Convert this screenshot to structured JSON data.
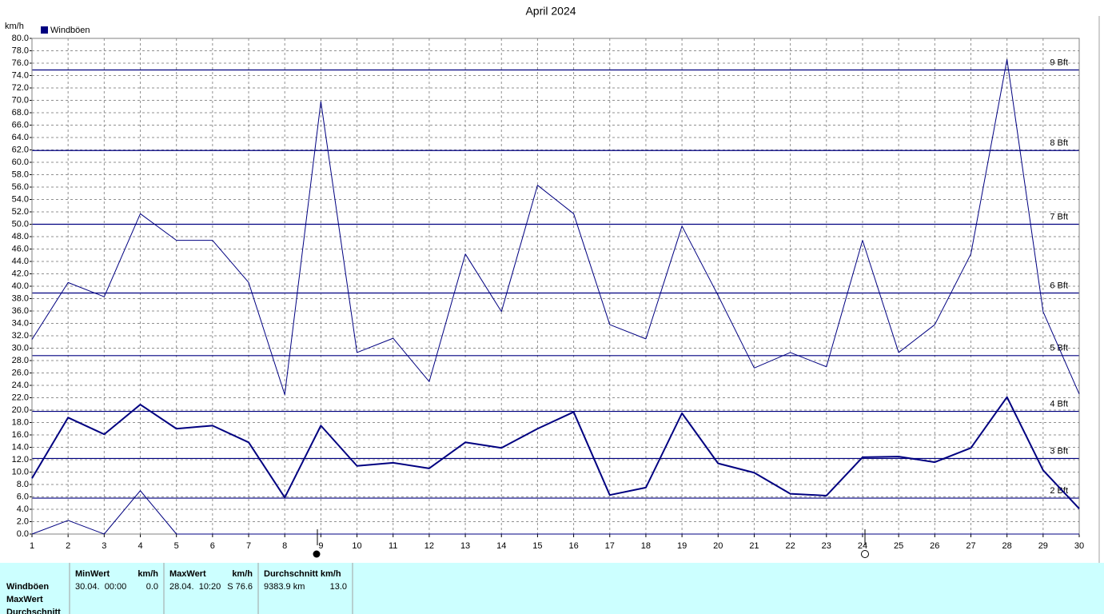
{
  "chart_data": {
    "type": "line",
    "title": "April 2024",
    "y_label": "km/h",
    "legend": "Windböen",
    "legend_color": "#000080",
    "legend_position": "top-left",
    "grid": true,
    "x": [
      1,
      2,
      3,
      4,
      5,
      6,
      7,
      8,
      9,
      10,
      11,
      12,
      13,
      14,
      15,
      16,
      17,
      18,
      19,
      20,
      21,
      22,
      23,
      24,
      25,
      26,
      27,
      28,
      29,
      30
    ],
    "xlim": [
      1,
      30
    ],
    "xticks": [
      1,
      2,
      3,
      4,
      5,
      6,
      7,
      8,
      9,
      10,
      11,
      12,
      13,
      14,
      15,
      16,
      17,
      18,
      19,
      20,
      21,
      22,
      23,
      24,
      25,
      26,
      27,
      28,
      29,
      30
    ],
    "ylim": [
      0,
      80
    ],
    "yticks": [
      {
        "value": 0,
        "label": "0.0"
      },
      {
        "value": 2,
        "label": "2.0"
      },
      {
        "value": 4,
        "label": "4.0"
      },
      {
        "value": 6,
        "label": "6.0"
      },
      {
        "value": 8,
        "label": "8.0"
      },
      {
        "value": 10,
        "label": "10.0"
      },
      {
        "value": 12,
        "label": "12.0"
      },
      {
        "value": 14,
        "label": "14.0"
      },
      {
        "value": 16,
        "label": "16.0"
      },
      {
        "value": 18,
        "label": "18.0"
      },
      {
        "value": 20,
        "label": "20.0"
      },
      {
        "value": 22,
        "label": "22.0"
      },
      {
        "value": 24,
        "label": "24.0"
      },
      {
        "value": 26,
        "label": "26.0"
      },
      {
        "value": 28,
        "label": "28.0"
      },
      {
        "value": 30,
        "label": "30.0"
      },
      {
        "value": 32,
        "label": "32.0"
      },
      {
        "value": 34,
        "label": "34.0"
      },
      {
        "value": 36,
        "label": "36.0"
      },
      {
        "value": 38,
        "label": "38.0"
      },
      {
        "value": 40,
        "label": "40.0"
      },
      {
        "value": 42,
        "label": "42.0"
      },
      {
        "value": 44,
        "label": "44.0"
      },
      {
        "value": 46,
        "label": "46.0"
      },
      {
        "value": 48,
        "label": "48.0"
      },
      {
        "value": 50,
        "label": "50.0"
      },
      {
        "value": 52,
        "label": "52.0"
      },
      {
        "value": 54,
        "label": "54.0"
      },
      {
        "value": 56,
        "label": "56.0"
      },
      {
        "value": 58,
        "label": "58.0"
      },
      {
        "value": 60,
        "label": "60.0"
      },
      {
        "value": 62,
        "label": "62.0"
      },
      {
        "value": 64,
        "label": "64.0"
      },
      {
        "value": 66,
        "label": "66.0"
      },
      {
        "value": 68,
        "label": "68.0"
      },
      {
        "value": 70,
        "label": "70.0"
      },
      {
        "value": 72,
        "label": "72.0"
      },
      {
        "value": 74,
        "label": "74.0"
      },
      {
        "value": 76,
        "label": "76.0"
      },
      {
        "value": 78,
        "label": "78.0"
      },
      {
        "value": 80,
        "label": "80.0"
      }
    ],
    "series": [
      {
        "color": "#000080",
        "width": 1,
        "values": [
          31.4,
          40.6,
          38.3,
          51.7,
          47.4,
          47.4,
          40.6,
          22.5,
          69.8,
          29.3,
          31.6,
          24.6,
          45.2,
          35.9,
          56.3,
          51.7,
          33.8,
          31.5,
          49.7,
          38.5,
          26.8,
          29.3,
          27.0,
          47.4,
          29.3,
          33.8,
          45.2,
          76.6,
          35.9,
          22.6
        ]
      },
      {
        "color": "#000080",
        "width": 2,
        "values": [
          9.0,
          18.8,
          16.1,
          20.9,
          17.0,
          17.5,
          14.8,
          5.9,
          17.5,
          11.0,
          11.5,
          10.6,
          14.8,
          13.9,
          17.0,
          19.7,
          6.3,
          7.5,
          19.5,
          11.4,
          9.9,
          6.5,
          6.2,
          12.4,
          12.5,
          11.6,
          13.9,
          22.1,
          10.3,
          4.1
        ]
      },
      {
        "color": "#000080",
        "width": 1,
        "values": [
          0,
          2.2,
          0,
          7.0,
          0,
          0,
          0,
          0,
          0,
          0,
          0,
          0,
          0,
          0,
          0,
          0,
          0,
          0,
          0,
          0,
          0,
          0,
          0,
          0,
          0,
          0,
          0,
          0,
          0,
          0
        ]
      }
    ],
    "reference_lines": [
      {
        "value": 5.8,
        "label": "2 Bft"
      },
      {
        "value": 12.2,
        "label": "3 Bft"
      },
      {
        "value": 19.8,
        "label": "4 Bft"
      },
      {
        "value": 28.8,
        "label": "5 Bft"
      },
      {
        "value": 38.9,
        "label": "6 Bft"
      },
      {
        "value": 50.0,
        "label": "7 Bft"
      },
      {
        "value": 61.9,
        "label": "8 Bft"
      },
      {
        "value": 74.9,
        "label": "9 Bft"
      }
    ],
    "reference_color": "#000080"
  },
  "summary_table": {
    "row_labels": [
      "Windböen",
      "MaxWert",
      "Durchschnitt"
    ],
    "headers": [
      "MinWert",
      "km/h",
      "MaxWert",
      "km/h",
      "Durchschnitt km/h"
    ],
    "rows": [
      [
        "30.04.  00:00",
        "0.0",
        "28.04.  10:20",
        "S 76.6",
        "9383.9 km",
        "13.0"
      ]
    ]
  }
}
